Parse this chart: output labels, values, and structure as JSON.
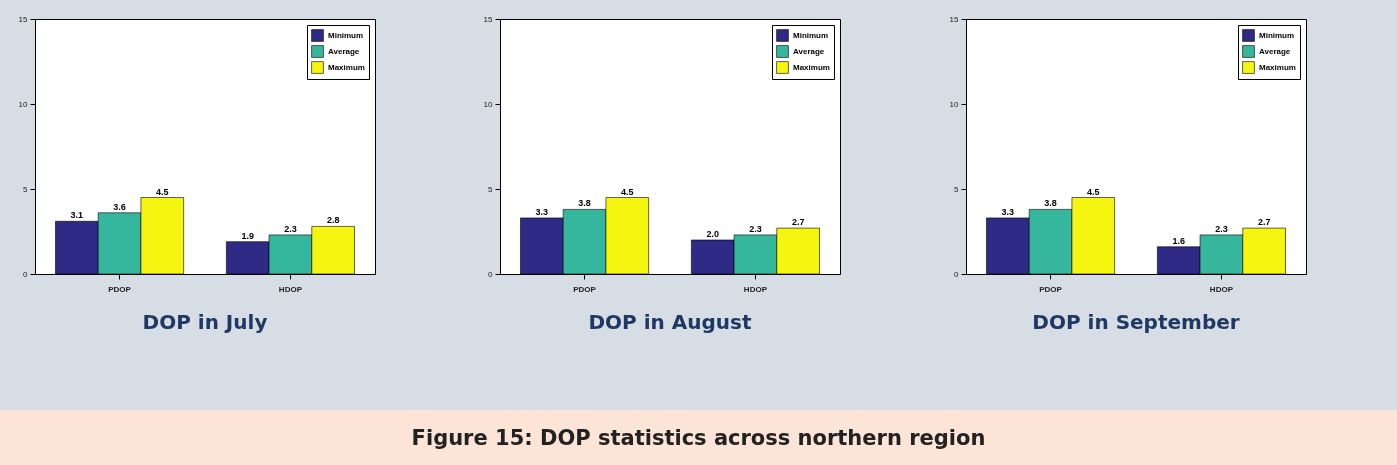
{
  "chart_data": [
    {
      "type": "bar",
      "title": "DOP in July",
      "categories": [
        "PDOP",
        "HDOP"
      ],
      "series": [
        {
          "name": "Minimum",
          "color": "#2e2a85",
          "values": [
            3.1,
            1.9
          ],
          "value_labels": [
            "3.1",
            "1.9"
          ]
        },
        {
          "name": "Average",
          "color": "#35b79e",
          "values": [
            3.6,
            2.3
          ],
          "value_labels": [
            "3.6",
            "2.3"
          ]
        },
        {
          "name": "Maximum",
          "color": "#f5f510",
          "values": [
            4.5,
            2.8
          ],
          "value_labels": [
            "4.5",
            "2.8"
          ]
        }
      ],
      "ylim": [
        0,
        15
      ],
      "yticks": [
        0,
        5,
        10,
        15
      ],
      "legend": "top right",
      "grid": false
    },
    {
      "type": "bar",
      "title": "DOP in August",
      "categories": [
        "PDOP",
        "HDOP"
      ],
      "series": [
        {
          "name": "Minimum",
          "color": "#2e2a85",
          "values": [
            3.3,
            2.0
          ],
          "value_labels": [
            "3.3",
            "2.0"
          ]
        },
        {
          "name": "Average",
          "color": "#35b79e",
          "values": [
            3.8,
            2.3
          ],
          "value_labels": [
            "3.8",
            "2.3"
          ]
        },
        {
          "name": "Maximum",
          "color": "#f5f510",
          "values": [
            4.5,
            2.7
          ],
          "value_labels": [
            "4.5",
            "2.7"
          ]
        }
      ],
      "ylim": [
        0,
        15
      ],
      "yticks": [
        0,
        5,
        10,
        15
      ],
      "legend": "top right",
      "grid": false,
      "annotations": [
        "Figure 15: DOP statistics across northern region"
      ]
    },
    {
      "type": "bar",
      "title": "DOP in September",
      "categories": [
        "PDOP",
        "HDOP"
      ],
      "series": [
        {
          "name": "Minimum",
          "color": "#2e2a85",
          "values": [
            3.3,
            1.6
          ],
          "value_labels": [
            "3.3",
            "1.6"
          ]
        },
        {
          "name": "Average",
          "color": "#35b79e",
          "values": [
            3.8,
            2.3
          ],
          "value_labels": [
            "3.8",
            "2.3"
          ]
        },
        {
          "name": "Maximum",
          "color": "#f5f510",
          "values": [
            4.5,
            2.7
          ],
          "value_labels": [
            "4.5",
            "2.7"
          ]
        }
      ],
      "ylim": [
        0,
        15
      ],
      "yticks": [
        0,
        5,
        10,
        15
      ],
      "legend": "top right",
      "grid": false
    }
  ]
}
